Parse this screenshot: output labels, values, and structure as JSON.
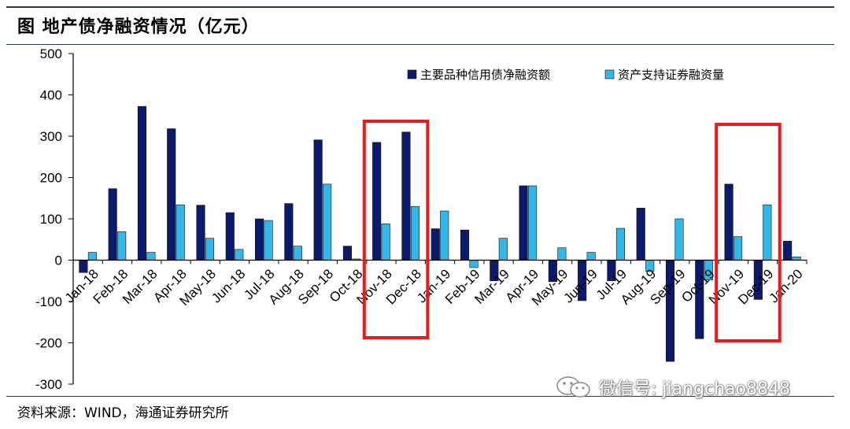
{
  "title": "图  地产债净融资情况（亿元）",
  "source": "资料来源：WIND，海通证券研究所",
  "watermark": {
    "text": "微信号: jiangchao8848",
    "icon": "wechat-icon"
  },
  "colors": {
    "series1": "#0c1a6b",
    "series2": "#33b7e8",
    "highlight": "#e81a1a",
    "rule": "#1f3864"
  },
  "chart_data": {
    "type": "bar",
    "categories": [
      "Jan-18",
      "Feb-18",
      "Mar-18",
      "Apr-18",
      "May-18",
      "Jun-18",
      "Jul-18",
      "Aug-18",
      "Sep-18",
      "Oct-18",
      "Nov-18",
      "Dec-18",
      "Jan-19",
      "Feb-19",
      "Mar-19",
      "Apr-19",
      "May-19",
      "Jun-19",
      "Jul-19",
      "Aug-19",
      "Sep-19",
      "Oct-19",
      "Nov-19",
      "Dec-19",
      "Jan-20"
    ],
    "series": [
      {
        "name": "主要品种信用债净融资额",
        "values": [
          -30,
          173,
          372,
          318,
          133,
          115,
          100,
          137,
          291,
          34,
          285,
          310,
          76,
          73,
          -50,
          180,
          -52,
          -98,
          -50,
          126,
          -245,
          -190,
          184,
          -95,
          46
        ]
      },
      {
        "name": "资产支持证券融资量",
        "values": [
          19,
          69,
          19,
          134,
          53,
          26,
          96,
          34,
          184,
          3,
          88,
          130,
          119,
          -18,
          53,
          180,
          30,
          19,
          77,
          -27,
          100,
          -48,
          57,
          134,
          8
        ]
      }
    ],
    "xlabel": "",
    "ylabel": "",
    "ylim": [
      -300,
      500
    ],
    "yticks": [
      -300,
      -200,
      -100,
      0,
      100,
      200,
      300,
      400,
      500
    ],
    "grid": false,
    "legend": "top-right",
    "highlights": [
      {
        "from": "Nov-18",
        "to": "Dec-18"
      },
      {
        "from": "Nov-19",
        "to": "Dec-19"
      }
    ]
  }
}
